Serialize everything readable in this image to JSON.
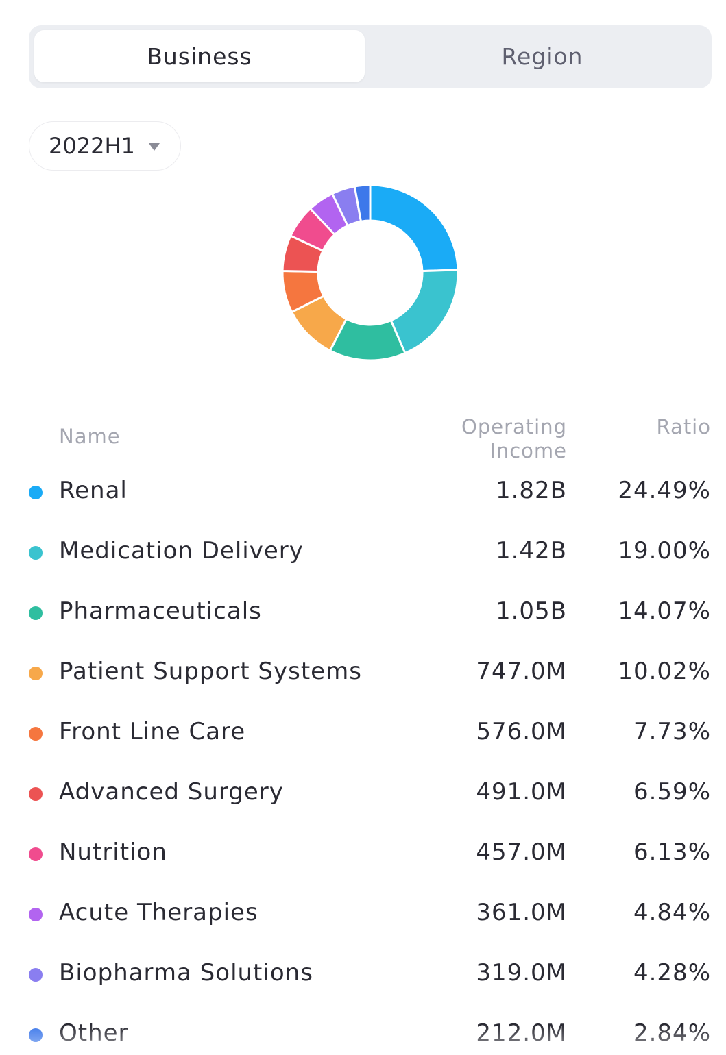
{
  "tabs": [
    {
      "label": "Business",
      "active": true
    },
    {
      "label": "Region",
      "active": false
    }
  ],
  "period": {
    "label": "2022H1"
  },
  "table": {
    "headers": {
      "name": "Name",
      "income_line1": "Operating",
      "income_line2": "Income",
      "ratio": "Ratio"
    }
  },
  "chart_data": {
    "type": "pie",
    "donut": true,
    "categories": [
      "Renal",
      "Medication Delivery",
      "Pharmaceuticals",
      "Patient Support Systems",
      "Front Line Care",
      "Advanced Surgery",
      "Nutrition",
      "Acute Therapies",
      "Biopharma Solutions",
      "Other"
    ],
    "values": [
      24.49,
      19.0,
      14.07,
      10.02,
      7.73,
      6.59,
      6.13,
      4.84,
      4.28,
      2.84
    ],
    "income_labels": [
      "1.82B",
      "1.42B",
      "1.05B",
      "747.0M",
      "576.0M",
      "491.0M",
      "457.0M",
      "361.0M",
      "319.0M",
      "212.0M"
    ],
    "ratio_labels": [
      "24.49%",
      "19.00%",
      "14.07%",
      "10.02%",
      "7.73%",
      "6.59%",
      "6.13%",
      "4.84%",
      "4.28%",
      "2.84%"
    ],
    "colors": [
      "#1aabf6",
      "#3ac3cf",
      "#2fbea0",
      "#f7a84a",
      "#f5763f",
      "#ec5353",
      "#f04c8e",
      "#b264f0",
      "#8a7ef0",
      "#3d78ea"
    ],
    "title": "",
    "legend": "below"
  }
}
